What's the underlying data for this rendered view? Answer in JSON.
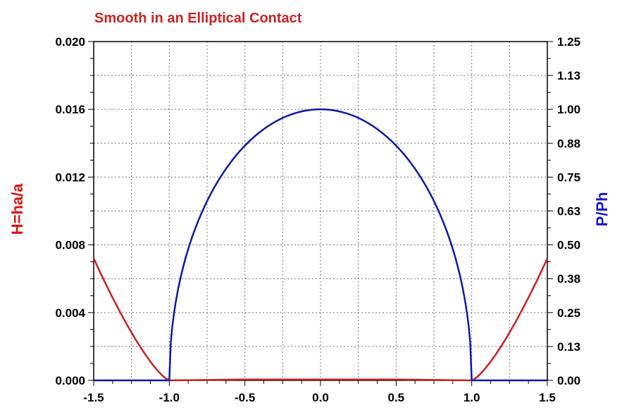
{
  "chart_data": {
    "type": "line",
    "title": "Smooth in an Elliptical Contact",
    "xlabel": "",
    "ylabel": "H=ha/a",
    "y2label": "P/Ph",
    "xlim": [
      -1.5,
      1.5
    ],
    "ylim": [
      0.0,
      0.02
    ],
    "y2lim": [
      0.0,
      1.25
    ],
    "grid": true,
    "x_ticks": [
      "-1.5",
      "-1.0",
      "-0.5",
      "0.0",
      "0.5",
      "1.0",
      "1.5"
    ],
    "y_ticks": [
      "0.000",
      "0.004",
      "0.008",
      "0.012",
      "0.016",
      "0.020"
    ],
    "y2_ticks": [
      "0.00",
      "0.13",
      "0.25",
      "0.38",
      "0.50",
      "0.63",
      "0.75",
      "0.88",
      "1.00",
      "1.13",
      "1.25"
    ],
    "colors": {
      "title": "#cc2222",
      "h_series": "#cc1f1f",
      "p_series": "#0a1aa6",
      "ylabel": "#dd1111",
      "y2label": "#1a1acc"
    },
    "series": [
      {
        "axis": "left",
        "color": "#cc1f1f",
        "x": [
          -1.5,
          -1.4,
          -1.3,
          -1.2,
          -1.1,
          -1.05,
          -1.0,
          -0.5,
          0.0,
          0.5,
          1.0,
          1.05,
          1.1,
          1.2,
          1.3,
          1.4,
          1.5
        ],
        "y": [
          0.0072,
          0.0055,
          0.0038,
          0.0022,
          0.0008,
          0.0003,
          0.0,
          5e-05,
          6e-05,
          5e-05,
          0.0,
          0.0003,
          0.0008,
          0.0022,
          0.0038,
          0.0055,
          0.0072
        ]
      },
      {
        "axis": "right",
        "color": "#0a1aa6",
        "x": [
          -1.5,
          -1.2,
          -1.0,
          -1.0,
          -0.95,
          -0.9,
          -0.8,
          -0.7,
          -0.6,
          -0.5,
          -0.4,
          -0.3,
          -0.2,
          -0.1,
          0.0,
          0.1,
          0.2,
          0.3,
          0.4,
          0.5,
          0.6,
          0.7,
          0.8,
          0.9,
          0.95,
          1.0,
          1.0,
          1.2,
          1.5
        ],
        "y": [
          0.0,
          0.0,
          0.0,
          0.06,
          0.312,
          0.436,
          0.6,
          0.714,
          0.8,
          0.866,
          0.917,
          0.954,
          0.98,
          0.995,
          1.0,
          0.995,
          0.98,
          0.954,
          0.917,
          0.866,
          0.8,
          0.714,
          0.6,
          0.436,
          0.312,
          0.06,
          0.0,
          0.0,
          0.0
        ]
      }
    ]
  }
}
